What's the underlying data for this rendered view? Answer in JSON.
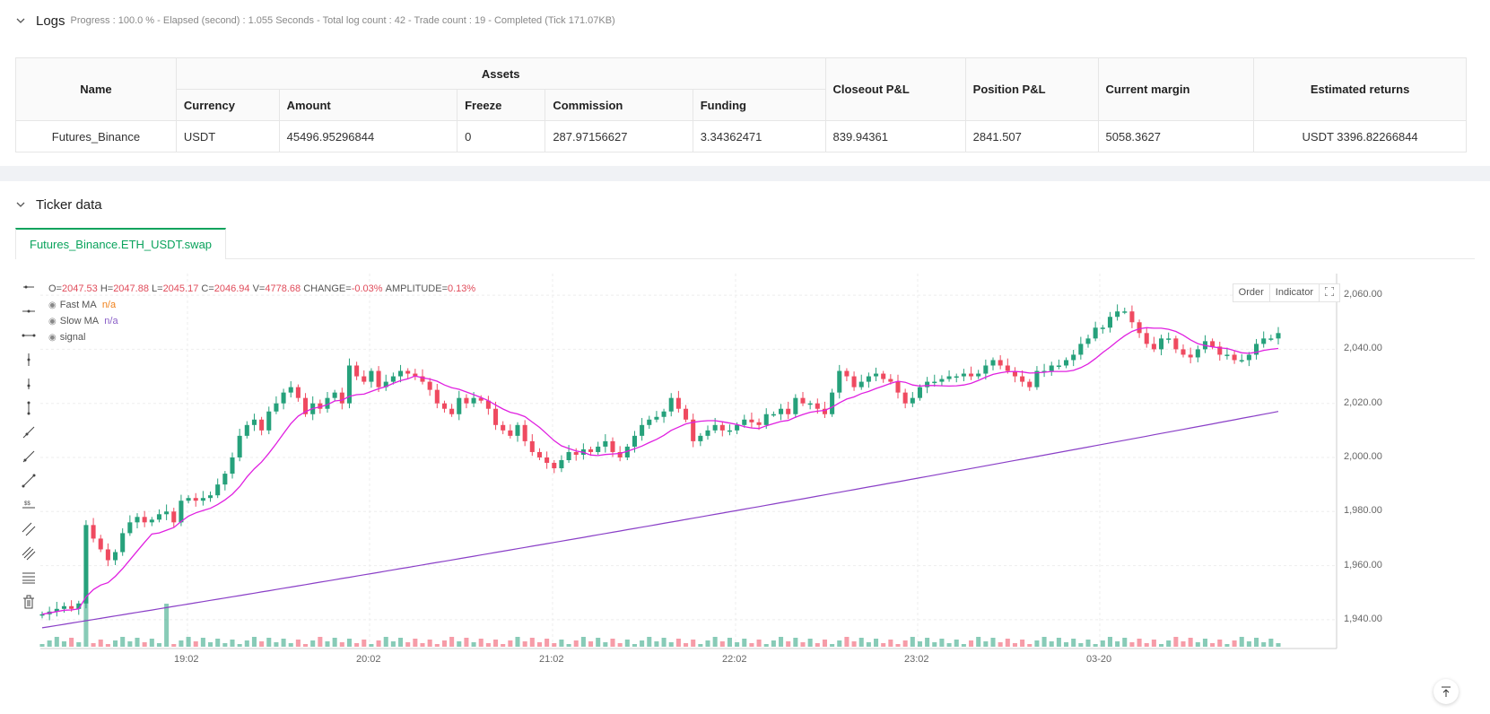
{
  "logs": {
    "title": "Logs",
    "meta": "Progress : 100.0 % - Elapsed (second) : 1.055  Seconds - Total log count : 42 - Trade count : 19 - Completed (Tick 171.07KB)",
    "table": {
      "name_header": "Name",
      "assets_header": "Assets",
      "sub_headers": [
        "Currency",
        "Amount",
        "Freeze",
        "Commission",
        "Funding"
      ],
      "closeout_header": "Closeout P&L",
      "position_header": "Position P&L",
      "margin_header": "Current margin",
      "returns_header": "Estimated returns",
      "row": {
        "name": "Futures_Binance",
        "currency": "USDT",
        "amount": "45496.95296844",
        "freeze": "0",
        "commission": "287.97156627",
        "funding": "3.34362471",
        "closeout": "839.94361",
        "position": "2841.507",
        "margin": "5058.3627",
        "returns": "USDT 3396.82266844"
      }
    }
  },
  "ticker": {
    "title": "Ticker data",
    "tab_label": "Futures_Binance.ETH_USDT.swap",
    "ohlc": {
      "o_label": "O=",
      "o": "2047.53",
      "h_label": "H=",
      "h": "2047.88",
      "l_label": "L=",
      "l": "2045.17",
      "c_label": "C=",
      "c": "2046.94",
      "v_label": "V=",
      "v": "4778.68",
      "change_label": "CHANGE=",
      "change": "-0.03%",
      "amp_label": "AMPLITUDE=",
      "amp": "0.13%"
    },
    "legend": [
      {
        "name": "Fast MA",
        "value": "n/a"
      },
      {
        "name": "Slow MA",
        "value": "n/a"
      },
      {
        "name": "signal",
        "value": ""
      }
    ],
    "buttons": {
      "order": "Order",
      "indicator": "Indicator"
    },
    "y_ticks": [
      "2,060.00",
      "2,040.00",
      "2,020.00",
      "2,000.00",
      "1,980.00",
      "1,960.00",
      "1,940.00"
    ],
    "x_ticks": [
      "19:02",
      "20:02",
      "21:02",
      "22:02",
      "23:02",
      "03-20"
    ]
  },
  "colors": {
    "up": "#26a17b",
    "down": "#ef4a60",
    "fast_ma": "#e020e0",
    "slow_ma": "#8a3fc7",
    "accent": "#0aa35c"
  },
  "chart_data": {
    "type": "candlestick",
    "y_range": [
      1930,
      2068
    ],
    "x_ticks": [
      "19:02",
      "20:02",
      "21:02",
      "22:02",
      "23:02",
      "03-20"
    ],
    "candles_close": [
      1942,
      1943,
      1944,
      1945,
      1944,
      1946,
      1975,
      1970,
      1966,
      1962,
      1965,
      1972,
      1976,
      1978,
      1976,
      1977,
      1979,
      1980,
      1976,
      1984,
      1985,
      1984,
      1985,
      1986,
      1990,
      1994,
      2000,
      2008,
      2012,
      2014,
      2010,
      2017,
      2020,
      2024,
      2026,
      2022,
      2016,
      2020,
      2018,
      2022,
      2024,
      2020,
      2034,
      2030,
      2028,
      2032,
      2026,
      2028,
      2030,
      2032,
      2031,
      2030,
      2028,
      2025,
      2020,
      2018,
      2016,
      2022,
      2020,
      2022,
      2021,
      2018,
      2012,
      2010,
      2008,
      2012,
      2006,
      2002,
      2000,
      1998,
      1996,
      1999,
      2002,
      2001,
      2003,
      2002,
      2004,
      2006,
      2002,
      2000,
      2004,
      2008,
      2012,
      2014,
      2015,
      2017,
      2022,
      2018,
      2014,
      2006,
      2008,
      2010,
      2012,
      2010,
      2010,
      2012,
      2014,
      2013,
      2012,
      2016,
      2016,
      2018,
      2016,
      2022,
      2020,
      2020,
      2018,
      2016,
      2024,
      2032,
      2030,
      2026,
      2028,
      2030,
      2031,
      2029,
      2028,
      2024,
      2020,
      2022,
      2026,
      2028,
      2028,
      2029,
      2030,
      2030,
      2031,
      2030,
      2031,
      2034,
      2036,
      2034,
      2032,
      2030,
      2028,
      2026,
      2032,
      2032,
      2034,
      2034,
      2036,
      2038,
      2042,
      2044,
      2048,
      2048,
      2052,
      2054,
      2054,
      2050,
      2046,
      2042,
      2040,
      2044,
      2044,
      2040,
      2038,
      2037,
      2040,
      2043,
      2041,
      2038,
      2038,
      2036,
      2036,
      2038,
      2042,
      2044,
      2044,
      2046
    ],
    "fast_ma_end": 2041,
    "slow_ma_range": [
      1937,
      2017
    ]
  }
}
